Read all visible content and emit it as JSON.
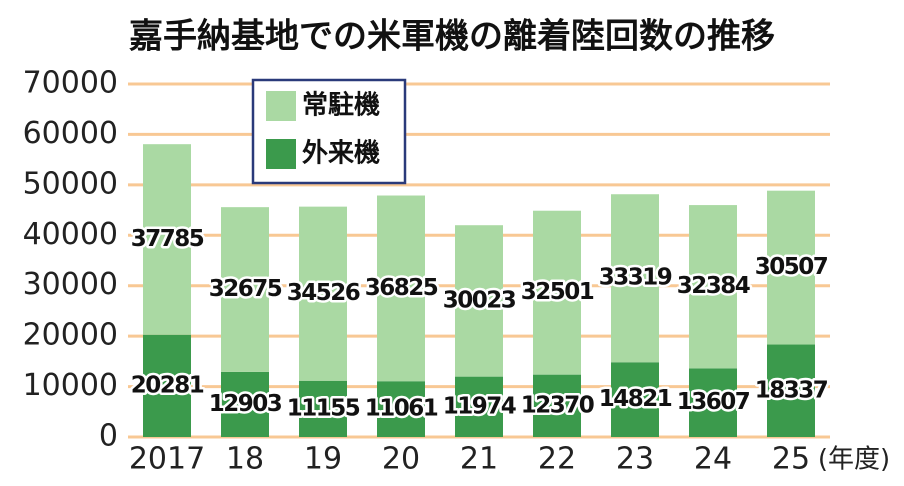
{
  "chart_data": {
    "type": "stacked_bar",
    "title": "嘉手納基地での米軍機の離着陸回数の推移",
    "categories": [
      "2017",
      "18",
      "19",
      "20",
      "21",
      "22",
      "23",
      "24",
      "25"
    ],
    "x_unit_label": "(年度)",
    "series": [
      {
        "name": "外来機",
        "color": "#3b9a4c",
        "values": [
          20281,
          12903,
          11155,
          11061,
          11974,
          12370,
          14821,
          13607,
          18337
        ]
      },
      {
        "name": "常駐機",
        "color": "#aad9a3",
        "values": [
          37785,
          32675,
          34526,
          36825,
          30023,
          32501,
          33319,
          32384,
          30507
        ]
      }
    ],
    "ylim": [
      0,
      70000
    ],
    "yticks": [
      0,
      10000,
      20000,
      30000,
      40000,
      50000,
      60000,
      70000
    ],
    "grid": true,
    "grid_color": "#f8c894",
    "legend": "upper left"
  }
}
